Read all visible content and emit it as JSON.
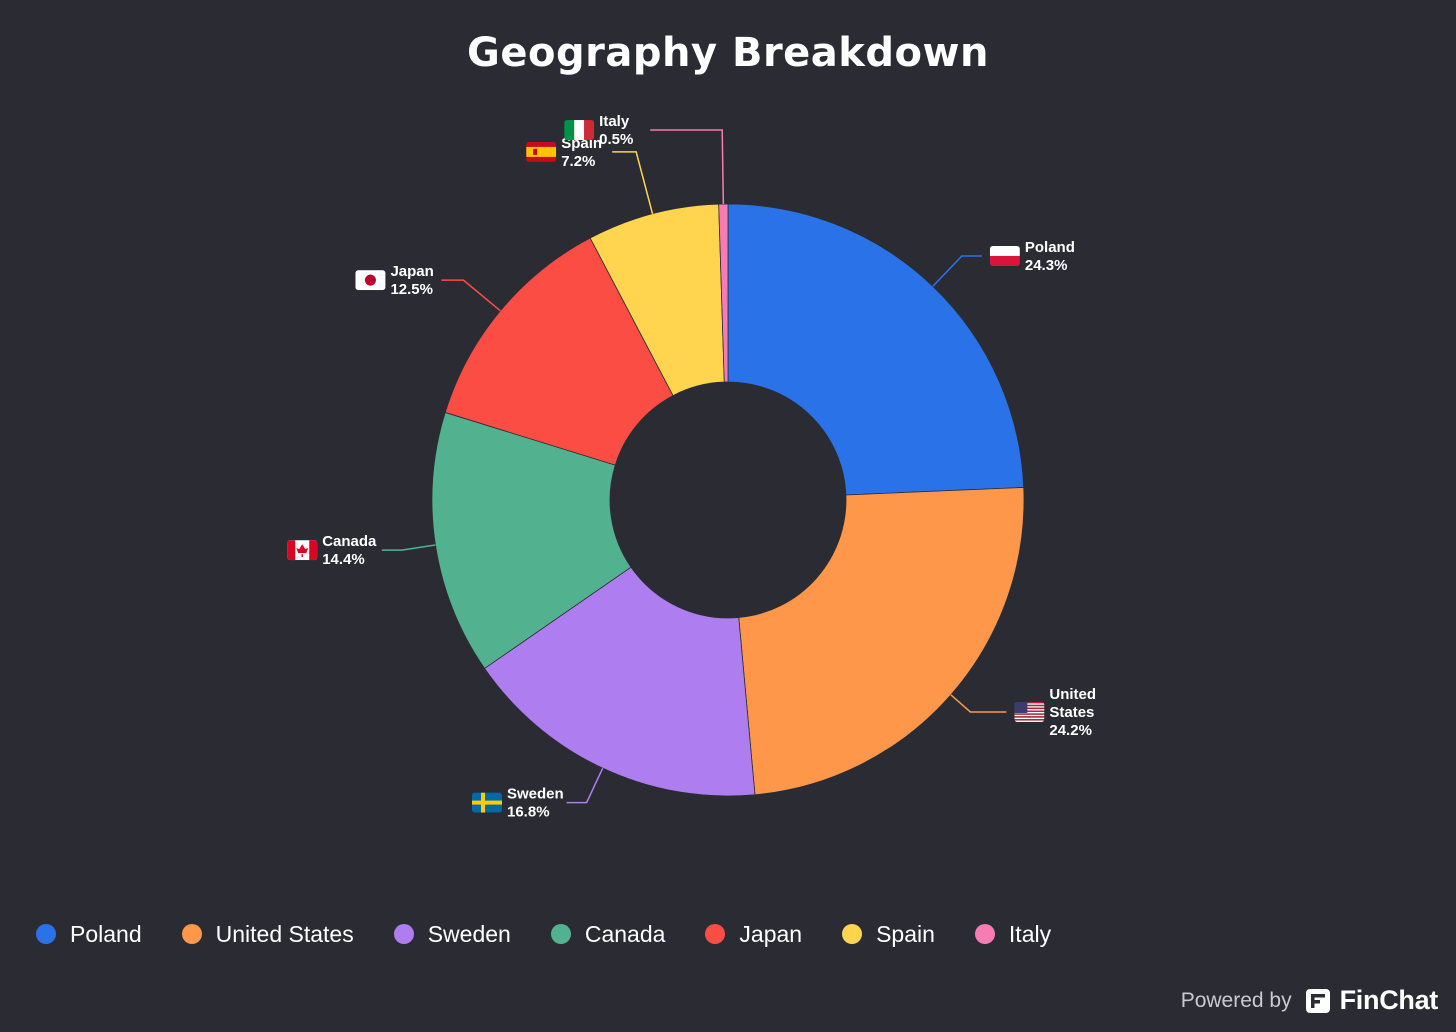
{
  "chart_data": {
    "type": "pie",
    "title": "Geography Breakdown",
    "legend_position": "bottom-left",
    "slices": [
      {
        "name": "Poland",
        "value": 24.3,
        "label": "24.3%",
        "color": "#2a72e8",
        "flag": "poland-flag"
      },
      {
        "name": "United States",
        "value": 24.2,
        "label": "24.2%",
        "color": "#ff974a",
        "flag": "usa-flag"
      },
      {
        "name": "Sweden",
        "value": 16.8,
        "label": "16.8%",
        "color": "#ae7ef0",
        "flag": "sweden-flag"
      },
      {
        "name": "Canada",
        "value": 14.4,
        "label": "14.4%",
        "color": "#52b290",
        "flag": "canada-flag"
      },
      {
        "name": "Japan",
        "value": 12.5,
        "label": "12.5%",
        "color": "#fb4d44",
        "flag": "japan-flag"
      },
      {
        "name": "Spain",
        "value": 7.2,
        "label": "7.2%",
        "color": "#ffd54f",
        "flag": "spain-flag"
      },
      {
        "name": "Italy",
        "value": 0.5,
        "label": "0.5%",
        "color": "#f77cb3",
        "flag": "italy-flag"
      }
    ]
  },
  "footer": {
    "powered_by": "Powered by",
    "brand": "FinChat"
  }
}
